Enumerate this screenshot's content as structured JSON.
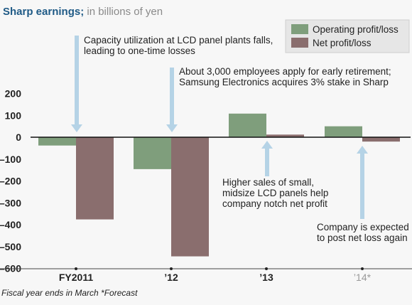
{
  "chart_data": {
    "type": "bar",
    "title": "Sharp earnings;",
    "subtitle": "in billions of yen",
    "categories": [
      "FY2011",
      "’12",
      "’13",
      "’14*"
    ],
    "forecast_category_index": 3,
    "series": [
      {
        "name": "Operating profit/loss",
        "color": "#7f9e7c",
        "values": [
          -38,
          -146,
          108,
          50
        ]
      },
      {
        "name": "Net profit/loss",
        "color": "#8a6e6e",
        "values": [
          -376,
          -545,
          12,
          -20
        ]
      }
    ],
    "y_ticks": [
      200,
      100,
      0,
      -100,
      -200,
      -300,
      -400,
      -500,
      -600
    ],
    "ylim": [
      -600,
      200
    ],
    "grid": false,
    "legend": "top-right",
    "annotations": [
      {
        "lines": [
          "Capacity utilization at LCD panel plants falls,",
          "leading to one-time losses"
        ],
        "category_index": 0
      },
      {
        "lines": [
          "About 3,000 employees apply for early retirement;",
          "Samsung Electronics acquires 3% stake in Sharp"
        ],
        "category_index": 1
      },
      {
        "lines": [
          "Higher sales of small,",
          "midsize LCD panels help",
          "company notch net profit"
        ],
        "category_index": 2
      },
      {
        "lines": [
          "Company is expected",
          "to post net loss again"
        ],
        "category_index": 3
      }
    ],
    "footnote": "Fiscal year ends in March  *Forecast"
  }
}
